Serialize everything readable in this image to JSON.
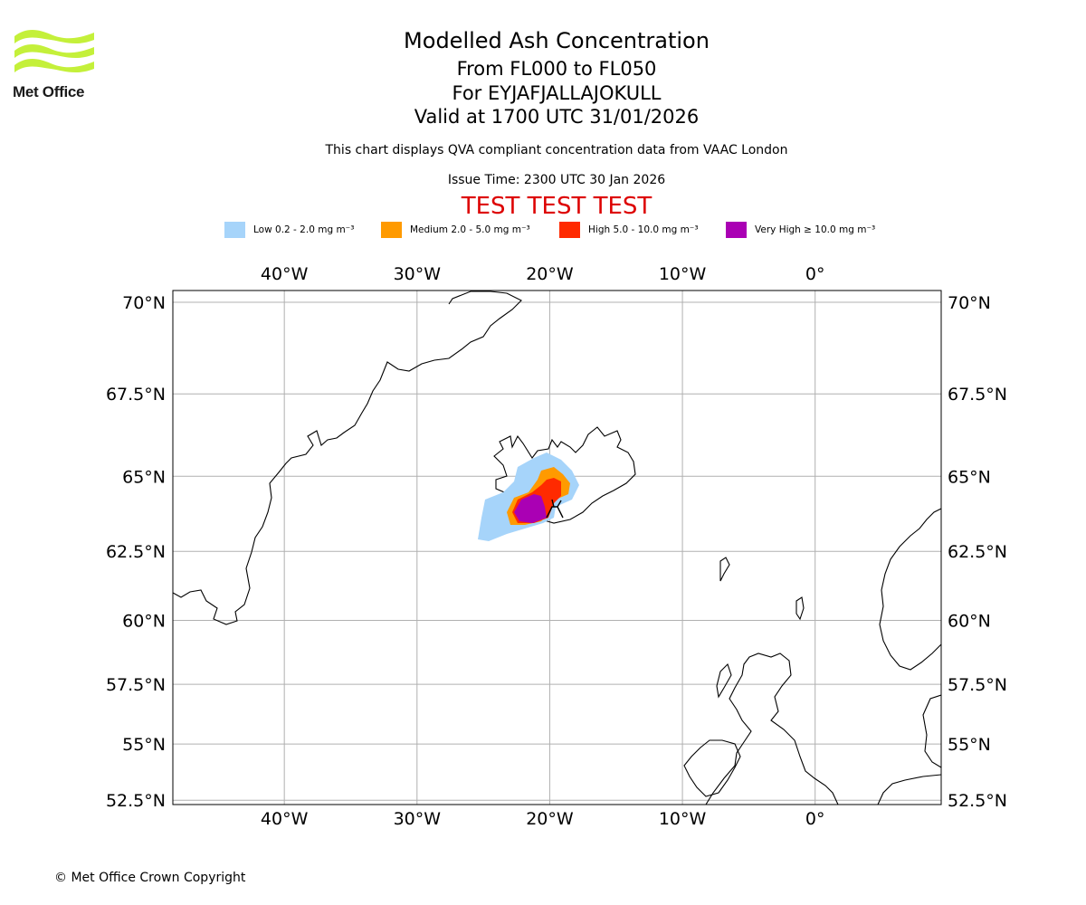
{
  "logo": {
    "text": "Met Office"
  },
  "header": {
    "title": "Modelled Ash Concentration",
    "level_range": "From FL000 to FL050",
    "volcano": "For EYJAFJALLAJOKULL",
    "valid_time": "Valid at 1700 UTC 31/01/2026",
    "subtitle": "This chart displays QVA compliant concentration data from VAAC London",
    "issue_time": "Issue Time: 2300 UTC 30 Jan 2026",
    "test_banner": "TEST TEST TEST"
  },
  "legend": [
    {
      "name": "Low",
      "label": "Low 0.2 - 2.0 mg m⁻³",
      "color": "#a6d4fa"
    },
    {
      "name": "Medium",
      "label": "Medium 2.0 - 5.0 mg m⁻³",
      "color": "#ff9a00"
    },
    {
      "name": "High",
      "label": "High 5.0 - 10.0 mg m⁻³",
      "color": "#ff2a00"
    },
    {
      "name": "Very High",
      "label": "Very High  ≥  10.0 mg m⁻³",
      "color": "#aa00b4"
    }
  ],
  "map": {
    "projection": "mercator",
    "lon_range": [
      -48.4,
      9.5
    ],
    "lat_range": [
      52.3,
      70.3
    ],
    "lon_ticks": [
      {
        "value": -40,
        "label": "40°W"
      },
      {
        "value": -30,
        "label": "30°W"
      },
      {
        "value": -20,
        "label": "20°W"
      },
      {
        "value": -10,
        "label": "10°W"
      },
      {
        "value": 0,
        "label": "0°"
      }
    ],
    "lat_ticks": [
      {
        "value": 70,
        "label": "70°N"
      },
      {
        "value": 67.5,
        "label": "67.5°N"
      },
      {
        "value": 65,
        "label": "65°N"
      },
      {
        "value": 62.5,
        "label": "62.5°N"
      },
      {
        "value": 60,
        "label": "60°N"
      },
      {
        "value": 57.5,
        "label": "57.5°N"
      },
      {
        "value": 55,
        "label": "55°N"
      },
      {
        "value": 52.5,
        "label": "52.5°N"
      }
    ],
    "grid": true,
    "volcano_location": {
      "lon": -19.6,
      "lat": 63.6
    }
  },
  "footer": {
    "copyright": "© Met Office Crown Copyright"
  }
}
